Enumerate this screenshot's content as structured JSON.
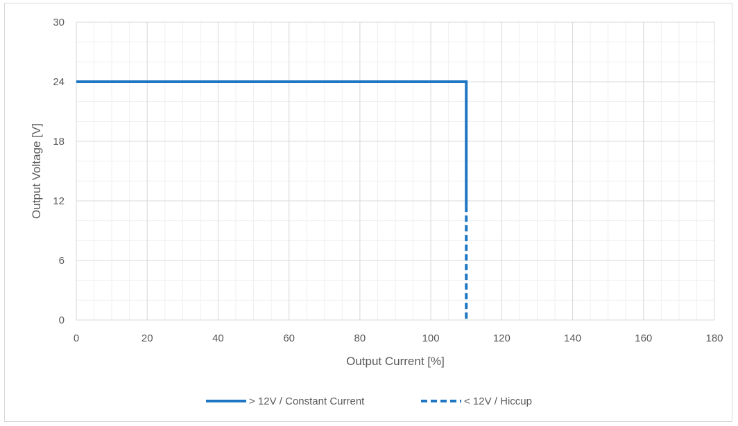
{
  "chart_data": {
    "type": "line",
    "title": "",
    "xlabel": "Output Current [%]",
    "ylabel": "Output Voltage [V]",
    "xlim": [
      0,
      180
    ],
    "ylim": [
      0,
      30
    ],
    "x_ticks": [
      0,
      20,
      40,
      60,
      80,
      100,
      120,
      140,
      160,
      180
    ],
    "y_ticks": [
      0,
      6,
      12,
      18,
      24,
      30
    ],
    "x_minor_step": 5,
    "y_minor_step": 2,
    "grid": true,
    "legend_position": "bottom",
    "series": [
      {
        "name": "> 12V / Constant Current",
        "style": "solid",
        "color": "#1f77c4",
        "points": [
          [
            0,
            24
          ],
          [
            110,
            24
          ],
          [
            110,
            11.5
          ]
        ]
      },
      {
        "name": "< 12V / Hiccup",
        "style": "dashed",
        "color": "#1f77c4",
        "points": [
          [
            110,
            11.5
          ],
          [
            110,
            0
          ]
        ]
      }
    ]
  }
}
